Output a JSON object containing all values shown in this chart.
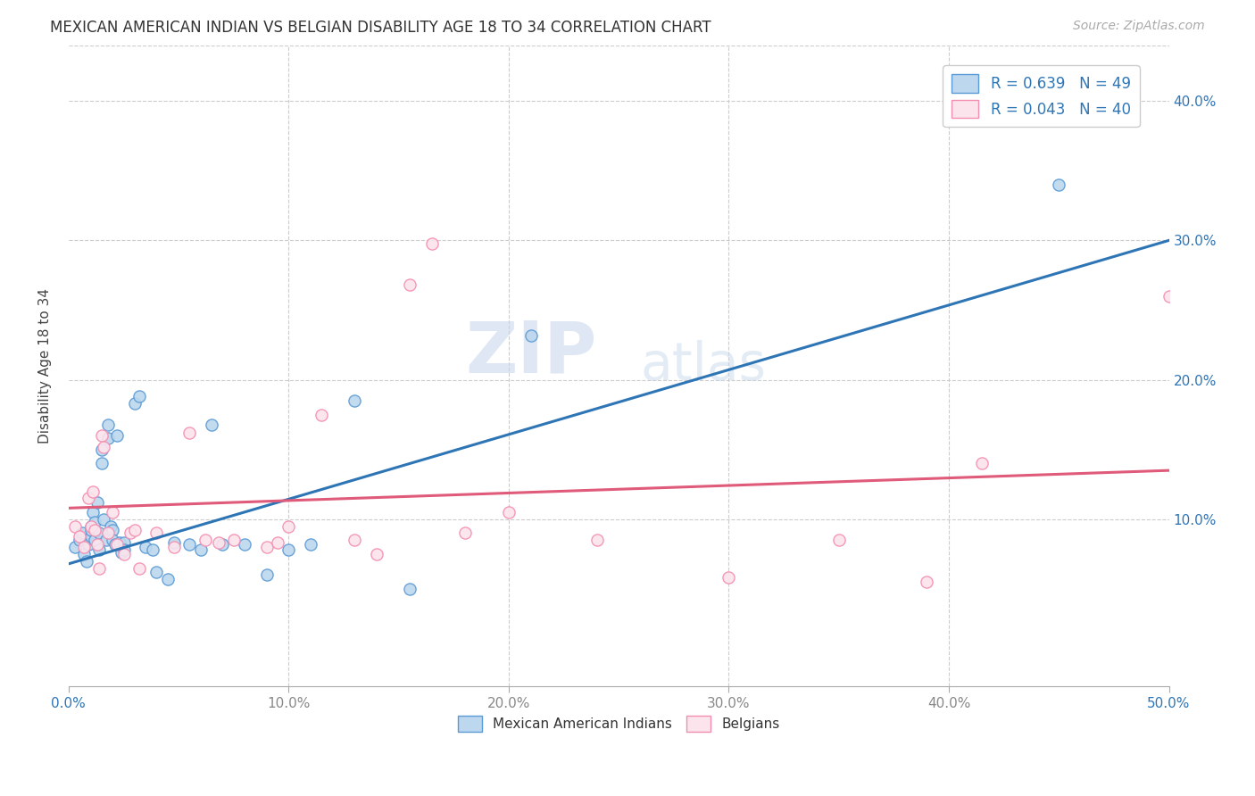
{
  "title": "MEXICAN AMERICAN INDIAN VS BELGIAN DISABILITY AGE 18 TO 34 CORRELATION CHART",
  "source": "Source: ZipAtlas.com",
  "ylabel": "Disability Age 18 to 34",
  "xlim": [
    0.0,
    0.5
  ],
  "ylim": [
    -0.02,
    0.44
  ],
  "xticks": [
    0.0,
    0.1,
    0.2,
    0.3,
    0.4,
    0.5
  ],
  "yticks_right": [
    0.1,
    0.2,
    0.3,
    0.4
  ],
  "ytick_labels_right": [
    "10.0%",
    "20.0%",
    "30.0%",
    "40.0%"
  ],
  "xtick_labels": [
    "0.0%",
    "10.0%",
    "20.0%",
    "30.0%",
    "40.0%",
    "50.0%"
  ],
  "legend_text1": "R = 0.639   N = 49",
  "legend_text2": "R = 0.043   N = 40",
  "legend_label1": "Mexican American Indians",
  "legend_label2": "Belgians",
  "color_blue_edge": "#5b9bd5",
  "color_blue_fill": "#bdd7ee",
  "color_blue_line": "#2e75b6",
  "color_pink_edge": "#f48eb1",
  "color_pink_fill": "#fce4ec",
  "color_pink_line": "#e05a7a",
  "watermark_zip": "ZIP",
  "watermark_atlas": "atlas",
  "blue_x": [
    0.003,
    0.005,
    0.006,
    0.007,
    0.008,
    0.009,
    0.01,
    0.01,
    0.01,
    0.011,
    0.012,
    0.012,
    0.013,
    0.014,
    0.014,
    0.015,
    0.015,
    0.016,
    0.017,
    0.018,
    0.018,
    0.019,
    0.02,
    0.02,
    0.021,
    0.022,
    0.023,
    0.024,
    0.025,
    0.025,
    0.03,
    0.032,
    0.035,
    0.038,
    0.04,
    0.045,
    0.048,
    0.055,
    0.06,
    0.065,
    0.07,
    0.08,
    0.09,
    0.1,
    0.11,
    0.13,
    0.155,
    0.21,
    0.45
  ],
  "blue_y": [
    0.08,
    0.085,
    0.09,
    0.075,
    0.07,
    0.082,
    0.088,
    0.095,
    0.092,
    0.105,
    0.098,
    0.085,
    0.112,
    0.09,
    0.078,
    0.15,
    0.14,
    0.1,
    0.085,
    0.168,
    0.158,
    0.095,
    0.092,
    0.085,
    0.082,
    0.16,
    0.083,
    0.076,
    0.083,
    0.078,
    0.183,
    0.188,
    0.08,
    0.078,
    0.062,
    0.057,
    0.083,
    0.082,
    0.078,
    0.168,
    0.082,
    0.082,
    0.06,
    0.078,
    0.082,
    0.185,
    0.05,
    0.232,
    0.34
  ],
  "pink_x": [
    0.003,
    0.005,
    0.007,
    0.009,
    0.01,
    0.011,
    0.012,
    0.013,
    0.014,
    0.015,
    0.016,
    0.018,
    0.02,
    0.022,
    0.025,
    0.028,
    0.03,
    0.032,
    0.04,
    0.048,
    0.055,
    0.062,
    0.068,
    0.075,
    0.09,
    0.095,
    0.1,
    0.115,
    0.13,
    0.14,
    0.155,
    0.165,
    0.18,
    0.2,
    0.24,
    0.3,
    0.35,
    0.39,
    0.415,
    0.5
  ],
  "pink_y": [
    0.095,
    0.088,
    0.08,
    0.115,
    0.095,
    0.12,
    0.092,
    0.082,
    0.065,
    0.16,
    0.152,
    0.09,
    0.105,
    0.082,
    0.075,
    0.09,
    0.092,
    0.065,
    0.09,
    0.08,
    0.162,
    0.085,
    0.083,
    0.085,
    0.08,
    0.083,
    0.095,
    0.175,
    0.085,
    0.075,
    0.268,
    0.298,
    0.09,
    0.105,
    0.085,
    0.058,
    0.085,
    0.055,
    0.14,
    0.26
  ],
  "blue_line_x": [
    0.0,
    0.5
  ],
  "blue_line_y": [
    0.068,
    0.3
  ],
  "pink_line_x": [
    0.0,
    0.5
  ],
  "pink_line_y": [
    0.108,
    0.135
  ]
}
